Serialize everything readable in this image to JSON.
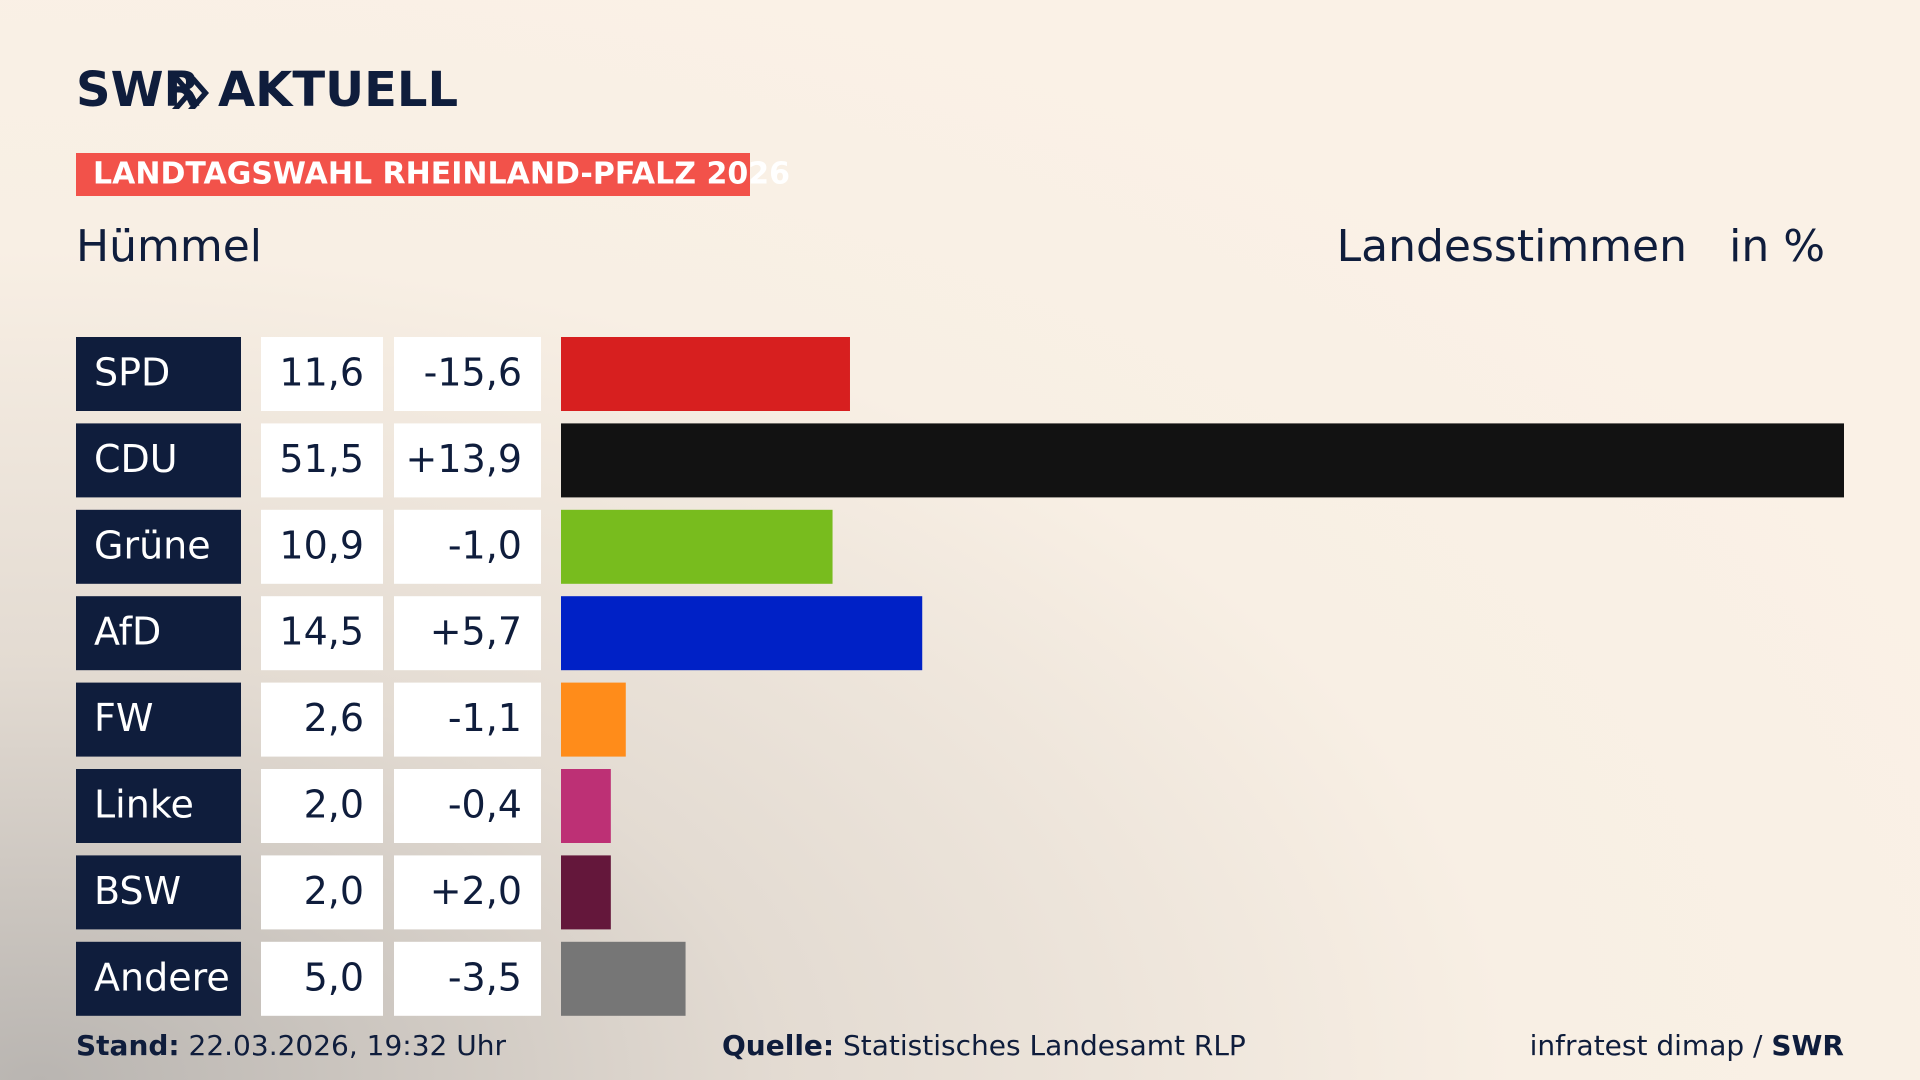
{
  "chart_data": {
    "type": "bar",
    "brand": "SWR",
    "section": "AKTUELL",
    "banner": "LANDTAGSWAHL RHEINLAND-PFALZ 2026",
    "title": "Hümmel",
    "measure": "Landesstimmen",
    "unit": "in %",
    "categories": [
      "SPD",
      "CDU",
      "Grüne",
      "AfD",
      "FW",
      "Linke",
      "BSW",
      "Andere"
    ],
    "values": [
      11.6,
      51.5,
      10.9,
      14.5,
      2.6,
      2.0,
      2.0,
      5.0
    ],
    "value_labels": [
      "11,6",
      "51,5",
      "10,9",
      "14,5",
      "2,6",
      "2,0",
      "2,0",
      "5,0"
    ],
    "changes": [
      -15.6,
      13.9,
      -1.0,
      5.7,
      -1.1,
      -0.4,
      2.0,
      -3.5
    ],
    "change_labels": [
      "-15,6",
      "+13,9",
      "-1,0",
      "+5,7",
      "-1,1",
      "-0,4",
      "+2,0",
      "-3,5"
    ],
    "colors": [
      "#d71f1f",
      "#121212",
      "#78bc1e",
      "#0021c6",
      "#ff8c1a",
      "#bd3075",
      "#64173b",
      "#767676"
    ],
    "footer": {
      "stand_label": "Stand:",
      "stand": "22.03.2026, 19:32 Uhr",
      "source_label": "Quelle:",
      "source": "Statistisches Landesamt RLP",
      "credit": "infratest dimap /",
      "credit_brand": "SWR"
    }
  }
}
